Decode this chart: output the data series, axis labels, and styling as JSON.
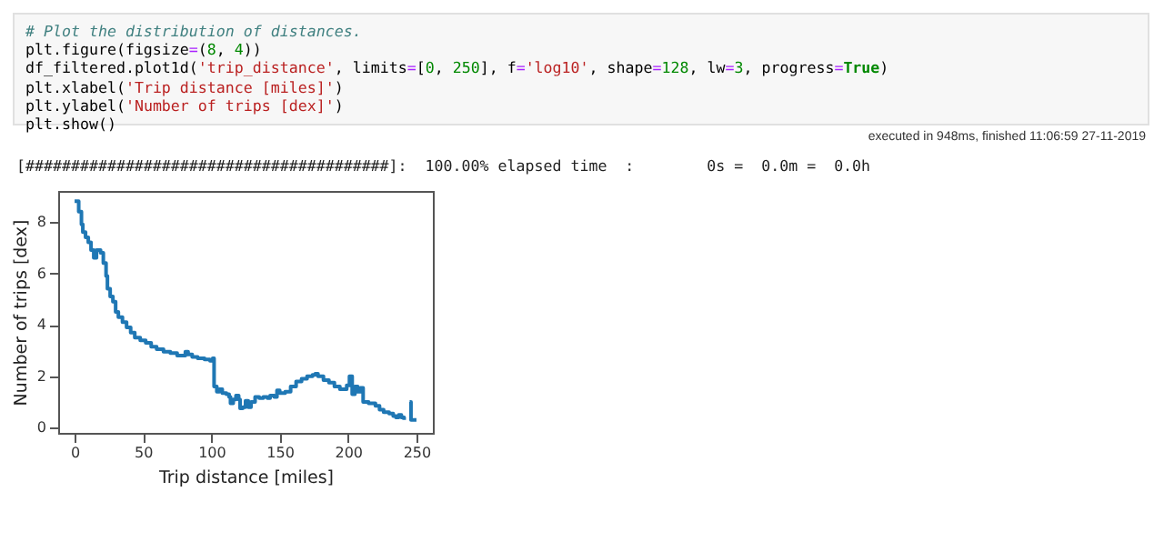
{
  "chart_data": {
    "type": "step",
    "xlabel": "Trip distance [miles]",
    "ylabel": "Number of trips [dex]",
    "annotations": [
      "# Plot the distribution of distances.",
      "plt.figure(figsize=(8, 4))",
      "df_filtered.plot1d('trip_distance', limits=[0, 250], f='log10', shape=128, lw=3, progress=True)",
      "plt.xlabel('Trip distance [miles]')",
      "plt.ylabel('Number of trips [dex]')",
      "plt.show()",
      "executed in 948ms, finished 11:06:59 27-11-2019",
      "[########################################]:  100.00% elapsed time  :        0s =  0.0m =  0.0h"
    ],
    "x": [
      0,
      2,
      3,
      5,
      6,
      8,
      10,
      12,
      14,
      16,
      19,
      21,
      23,
      24,
      26,
      28,
      30,
      32,
      35,
      38,
      41,
      44,
      48,
      52,
      56,
      60,
      65,
      70,
      75,
      80,
      81,
      83,
      86,
      90,
      95,
      99,
      101,
      102,
      104,
      106,
      108,
      111,
      113,
      114,
      116,
      118,
      120,
      121,
      123,
      125,
      127,
      129,
      132,
      135,
      138,
      141,
      143,
      146,
      148,
      150,
      154,
      158,
      162,
      166,
      170,
      174,
      176,
      178,
      182,
      186,
      190,
      194,
      197,
      199,
      201,
      203,
      205,
      207,
      209,
      211,
      215,
      218,
      220,
      223,
      226,
      230,
      233,
      235,
      237,
      239,
      241,
      243,
      245,
      246,
      250
    ],
    "series": [
      {
        "color": "#1f77b4",
        "values": [
          8.8,
          8.8,
          8.4,
          7.9,
          7.6,
          7.4,
          7.2,
          6.9,
          6.6,
          6.9,
          6.8,
          6.4,
          5.9,
          5.4,
          5.1,
          4.9,
          4.5,
          4.3,
          4.1,
          3.9,
          3.7,
          3.5,
          3.4,
          3.3,
          3.15,
          3.05,
          2.95,
          2.9,
          2.8,
          2.8,
          2.95,
          2.85,
          2.75,
          2.7,
          2.65,
          2.6,
          2.7,
          1.6,
          1.4,
          1.5,
          1.35,
          1.3,
          1.2,
          0.95,
          1.1,
          1.25,
          1.1,
          0.75,
          0.8,
          1.05,
          0.8,
          1.0,
          1.2,
          1.15,
          1.2,
          1.15,
          1.25,
          1.2,
          1.45,
          1.35,
          1.4,
          1.6,
          1.8,
          1.9,
          2.0,
          2.05,
          2.1,
          2.0,
          1.85,
          1.75,
          1.6,
          1.5,
          1.5,
          1.65,
          2.0,
          1.3,
          1.6,
          1.4,
          1.55,
          1.0,
          0.95,
          0.95,
          0.85,
          0.7,
          0.6,
          0.55,
          0.45,
          0.4,
          0.5,
          0.4,
          0.3,
          null,
          1.0,
          0.3,
          0.3
        ]
      }
    ],
    "xlim": [
      -12,
      262
    ],
    "xticks": [
      0,
      50,
      100,
      150,
      200,
      250
    ],
    "ylim": [
      -0.2,
      9.2
    ],
    "yticks": [
      0,
      2,
      4,
      6,
      8
    ],
    "grid": false,
    "legend": false
  }
}
